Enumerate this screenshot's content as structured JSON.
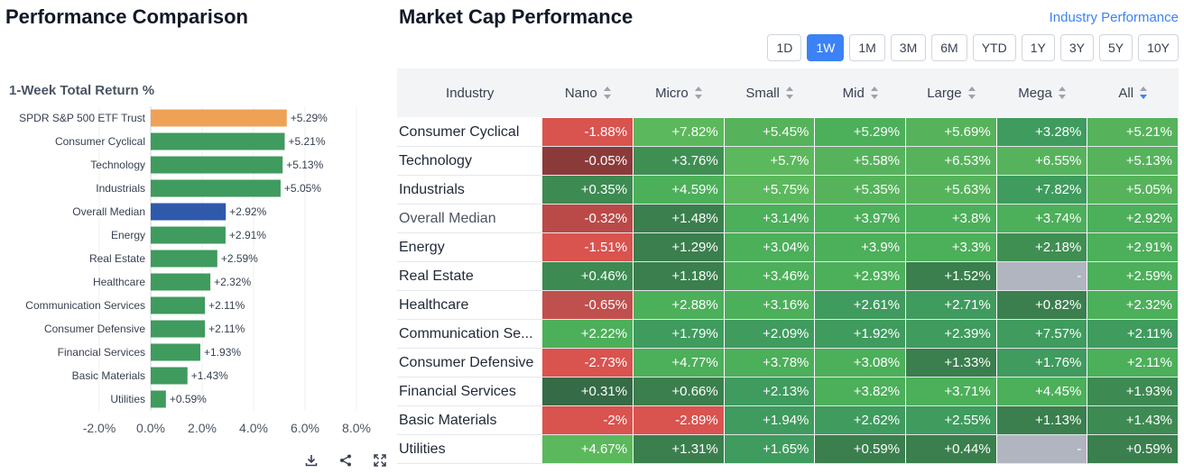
{
  "left_title": "Performance Comparison",
  "chart_data": {
    "type": "bar",
    "orientation": "horizontal",
    "title": "1-Week Total Return %",
    "categories": [
      "SPDR S&P 500 ETF Trust",
      "Consumer Cyclical",
      "Technology",
      "Industrials",
      "Overall Median",
      "Energy",
      "Real Estate",
      "Healthcare",
      "Communication Services",
      "Consumer Defensive",
      "Financial Services",
      "Basic Materials",
      "Utilities"
    ],
    "values": [
      5.29,
      5.21,
      5.13,
      5.05,
      2.92,
      2.91,
      2.59,
      2.32,
      2.11,
      2.11,
      1.93,
      1.43,
      0.59
    ],
    "labels": [
      "+5.29%",
      "+5.21%",
      "+5.13%",
      "+5.05%",
      "+2.92%",
      "+2.91%",
      "+2.59%",
      "+2.32%",
      "+2.11%",
      "+2.11%",
      "+1.93%",
      "+1.43%",
      "+0.59%"
    ],
    "colors": [
      "#eea256",
      "#3f9b5e",
      "#3f9b5e",
      "#3f9b5e",
      "#2f5aab",
      "#3f9b5e",
      "#3f9b5e",
      "#3f9b5e",
      "#3f9b5e",
      "#3f9b5e",
      "#3f9b5e",
      "#3f9b5e",
      "#3f9b5e"
    ],
    "xlim": [
      -2,
      8
    ],
    "xticks": [
      -2,
      0,
      2,
      4,
      6,
      8
    ],
    "xtick_labels": [
      "-2.0%",
      "0.0%",
      "2.0%",
      "4.0%",
      "6.0%",
      "8.0%"
    ],
    "grid": true
  },
  "chart_tools": {
    "download": "download-icon",
    "share": "share-icon",
    "expand": "expand-icon"
  },
  "right_title": "Market Cap Performance",
  "industry_link": "Industry Performance",
  "periods": [
    "1D",
    "1W",
    "1M",
    "3M",
    "6M",
    "YTD",
    "1Y",
    "3Y",
    "5Y",
    "10Y"
  ],
  "active_period": "1W",
  "table": {
    "headers": [
      "Industry",
      "Nano",
      "Micro",
      "Small",
      "Mid",
      "Large",
      "Mega",
      "All"
    ],
    "rows": [
      {
        "industry": "Consumer Cyclical",
        "values": [
          "-1.88%",
          "+7.82%",
          "+5.45%",
          "+5.29%",
          "+5.69%",
          "+3.28%",
          "+5.21%"
        ]
      },
      {
        "industry": "Technology",
        "values": [
          "-0.05%",
          "+3.76%",
          "+5.7%",
          "+5.58%",
          "+6.53%",
          "+6.55%",
          "+5.13%"
        ]
      },
      {
        "industry": "Industrials",
        "values": [
          "+0.35%",
          "+4.59%",
          "+5.75%",
          "+5.35%",
          "+5.63%",
          "+7.82%",
          "+5.05%"
        ]
      },
      {
        "industry": "Overall Median",
        "values": [
          "-0.32%",
          "+1.48%",
          "+3.14%",
          "+3.97%",
          "+3.8%",
          "+3.74%",
          "+2.92%"
        ]
      },
      {
        "industry": "Energy",
        "values": [
          "-1.51%",
          "+1.29%",
          "+3.04%",
          "+3.9%",
          "+3.3%",
          "+2.18%",
          "+2.91%"
        ]
      },
      {
        "industry": "Real Estate",
        "values": [
          "+0.46%",
          "+1.18%",
          "+3.46%",
          "+2.93%",
          "+1.52%",
          "-",
          "+2.59%"
        ]
      },
      {
        "industry": "Healthcare",
        "values": [
          "-0.65%",
          "+2.88%",
          "+3.16%",
          "+2.61%",
          "+2.71%",
          "+0.82%",
          "+2.32%"
        ]
      },
      {
        "industry": "Communication Se...",
        "values": [
          "+2.22%",
          "+1.79%",
          "+2.09%",
          "+1.92%",
          "+2.39%",
          "+7.57%",
          "+2.11%"
        ]
      },
      {
        "industry": "Consumer Defensive",
        "values": [
          "-2.73%",
          "+4.77%",
          "+3.78%",
          "+3.08%",
          "+1.33%",
          "+1.76%",
          "+2.11%"
        ]
      },
      {
        "industry": "Financial Services",
        "values": [
          "+0.31%",
          "+0.66%",
          "+2.13%",
          "+3.82%",
          "+3.71%",
          "+4.45%",
          "+1.93%"
        ]
      },
      {
        "industry": "Basic Materials",
        "values": [
          "-2%",
          "-2.89%",
          "+1.94%",
          "+2.62%",
          "+2.55%",
          "+1.13%",
          "+1.43%"
        ]
      },
      {
        "industry": "Utilities",
        "values": [
          "+4.67%",
          "+1.31%",
          "+1.65%",
          "+0.59%",
          "+0.44%",
          "-",
          "+0.59%"
        ]
      }
    ],
    "cell_colors": [
      [
        "#d9534f",
        "#5cb85c",
        "#56b35c",
        "#4caf5a",
        "#56b35c",
        "#3f9b5e",
        "#56b35c"
      ],
      [
        "#8b3a3a",
        "#3f8f53",
        "#5cb85c",
        "#56b35c",
        "#56b35c",
        "#56b35c",
        "#56b35c"
      ],
      [
        "#3d8a52",
        "#4caf5a",
        "#5cb85c",
        "#56b35c",
        "#56b35c",
        "#3f9b5e",
        "#56b35c"
      ],
      [
        "#b94a48",
        "#3a7f4d",
        "#4caf5a",
        "#4caf5a",
        "#4caf5a",
        "#4caf5a",
        "#4caf5a"
      ],
      [
        "#d9534f",
        "#3a7f4d",
        "#4caf5a",
        "#4caf5a",
        "#4caf5a",
        "#3f8f53",
        "#4caf5a"
      ],
      [
        "#3d8a52",
        "#3a7f4d",
        "#4caf5a",
        "#4caf5a",
        "#3a7f4d",
        "#b1b5c0",
        "#4caf5a"
      ],
      [
        "#c0504d",
        "#4caf5a",
        "#4caf5a",
        "#3f9b5e",
        "#3f9b5e",
        "#3a7f4d",
        "#4caf5a"
      ],
      [
        "#4caf5a",
        "#3f9b5e",
        "#3f9b5e",
        "#3f9b5e",
        "#3f9b5e",
        "#3f9b5e",
        "#3f9b5e"
      ],
      [
        "#d9534f",
        "#4caf5a",
        "#4caf5a",
        "#4caf5a",
        "#3a7f4d",
        "#3f9b5e",
        "#4caf5a"
      ],
      [
        "#356b46",
        "#3a7f4d",
        "#3f9b5e",
        "#4caf5a",
        "#4caf5a",
        "#4caf5a",
        "#3d8a52"
      ],
      [
        "#d9534f",
        "#d9534f",
        "#3f9b5e",
        "#3f9b5e",
        "#3f9b5e",
        "#3a7f4d",
        "#3d8a52"
      ],
      [
        "#5cb85c",
        "#3a7f4d",
        "#3f9b5e",
        "#3a7f4d",
        "#3a7f4d",
        "#b1b5c0",
        "#3a7f4d"
      ]
    ],
    "muted_rows": [
      "Overall Median"
    ]
  }
}
